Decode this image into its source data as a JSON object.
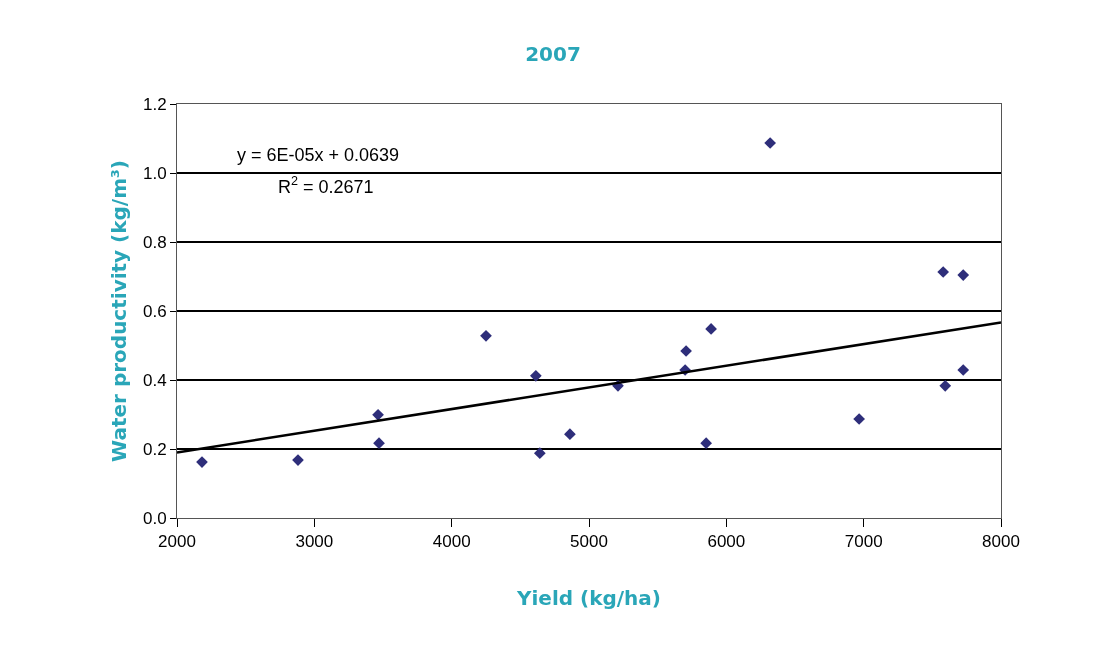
{
  "chart_data": {
    "type": "scatter",
    "title": "2007",
    "xlabel": "Yield (kg/ha)",
    "ylabel": "Water productivity (kg/m³)",
    "xlim": [
      2000,
      8000
    ],
    "xticks": [
      2000,
      3000,
      4000,
      5000,
      6000,
      7000,
      8000
    ],
    "ylim": [
      0,
      1.2
    ],
    "yticks": [
      {
        "value": 0,
        "label": "0.0"
      },
      0.2,
      0.4,
      0.6,
      0.8,
      {
        "value": 1,
        "label": "1.0"
      },
      1.2
    ],
    "grid": "y",
    "marker": "diamond",
    "annotations": [
      "y = 6E-05x + 0.0639",
      "R$^{2}$ = 0.2671"
    ],
    "series": [
      {
        "color": "#2e2e7a",
        "x": [
          2182,
          2881,
          3464,
          3471,
          4250,
          4613,
          4642,
          4861,
          5211,
          5707,
          5700,
          5889,
          5853,
          6319,
          6967,
          7579,
          7725,
          7594,
          7725
        ],
        "values": [
          0.162,
          0.168,
          0.299,
          0.217,
          0.528,
          0.412,
          0.188,
          0.243,
          0.383,
          0.484,
          0.429,
          0.548,
          0.217,
          1.087,
          0.287,
          0.713,
          0.704,
          0.383,
          0.429
        ]
      },
      {
        "type": "line",
        "color": "#000000",
        "marker": "none",
        "line_style": "solid",
        "x": [
          2000,
          8000
        ],
        "values": [
          0.19,
          0.567
        ]
      }
    ]
  }
}
